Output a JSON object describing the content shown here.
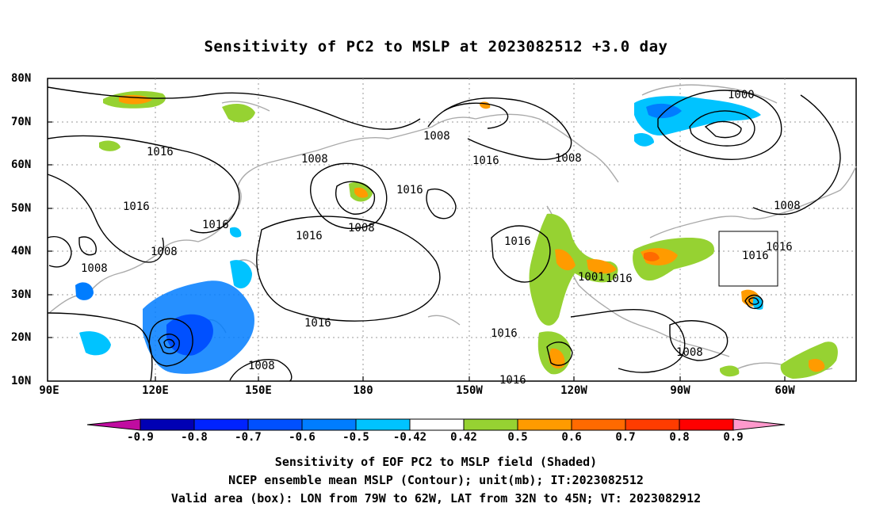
{
  "title": "Sensitivity of PC2 to MSLP at 2023082512 +3.0 day",
  "lat_labels": [
    "80N",
    "70N",
    "60N",
    "50N",
    "40N",
    "30N",
    "20N",
    "10N"
  ],
  "lon_labels": [
    "90E",
    "120E",
    "150E",
    "180",
    "150W",
    "120W",
    "90W",
    "60W"
  ],
  "contour_labels": [
    "1016",
    "1016",
    "1016",
    "1016",
    "1008",
    "1008",
    "1008",
    "1016",
    "1016",
    "1008",
    "1008",
    "1008",
    "1016",
    "1016",
    "1016",
    "1000",
    "1008",
    "1016",
    "1016",
    "1016",
    "1001",
    "1016",
    "1008",
    "1008"
  ],
  "colorbar": {
    "labels": [
      "-0.9",
      "-0.8",
      "-0.7",
      "-0.6",
      "-0.5",
      "-0.42",
      "0.42",
      "0.5",
      "0.6",
      "0.7",
      "0.8",
      "0.9"
    ],
    "colors": [
      "#c00ca0",
      "#0000b4",
      "#0023ff",
      "#0050ff",
      "#007dff",
      "#00c3ff",
      "#ffffff",
      "#96d232",
      "#ff9b00",
      "#ff6a00",
      "#ff3c00",
      "#ff0000",
      "#ff99cc"
    ]
  },
  "footer": [
    "Sensitivity of EOF PC2 to MSLP field (Shaded)",
    "NCEP ensemble mean MSLP (Contour); unit(mb); IT:2023082512",
    "Valid area (box): LON from 79W to 62W, LAT from 32N to 45N; VT: 2023082912"
  ]
}
